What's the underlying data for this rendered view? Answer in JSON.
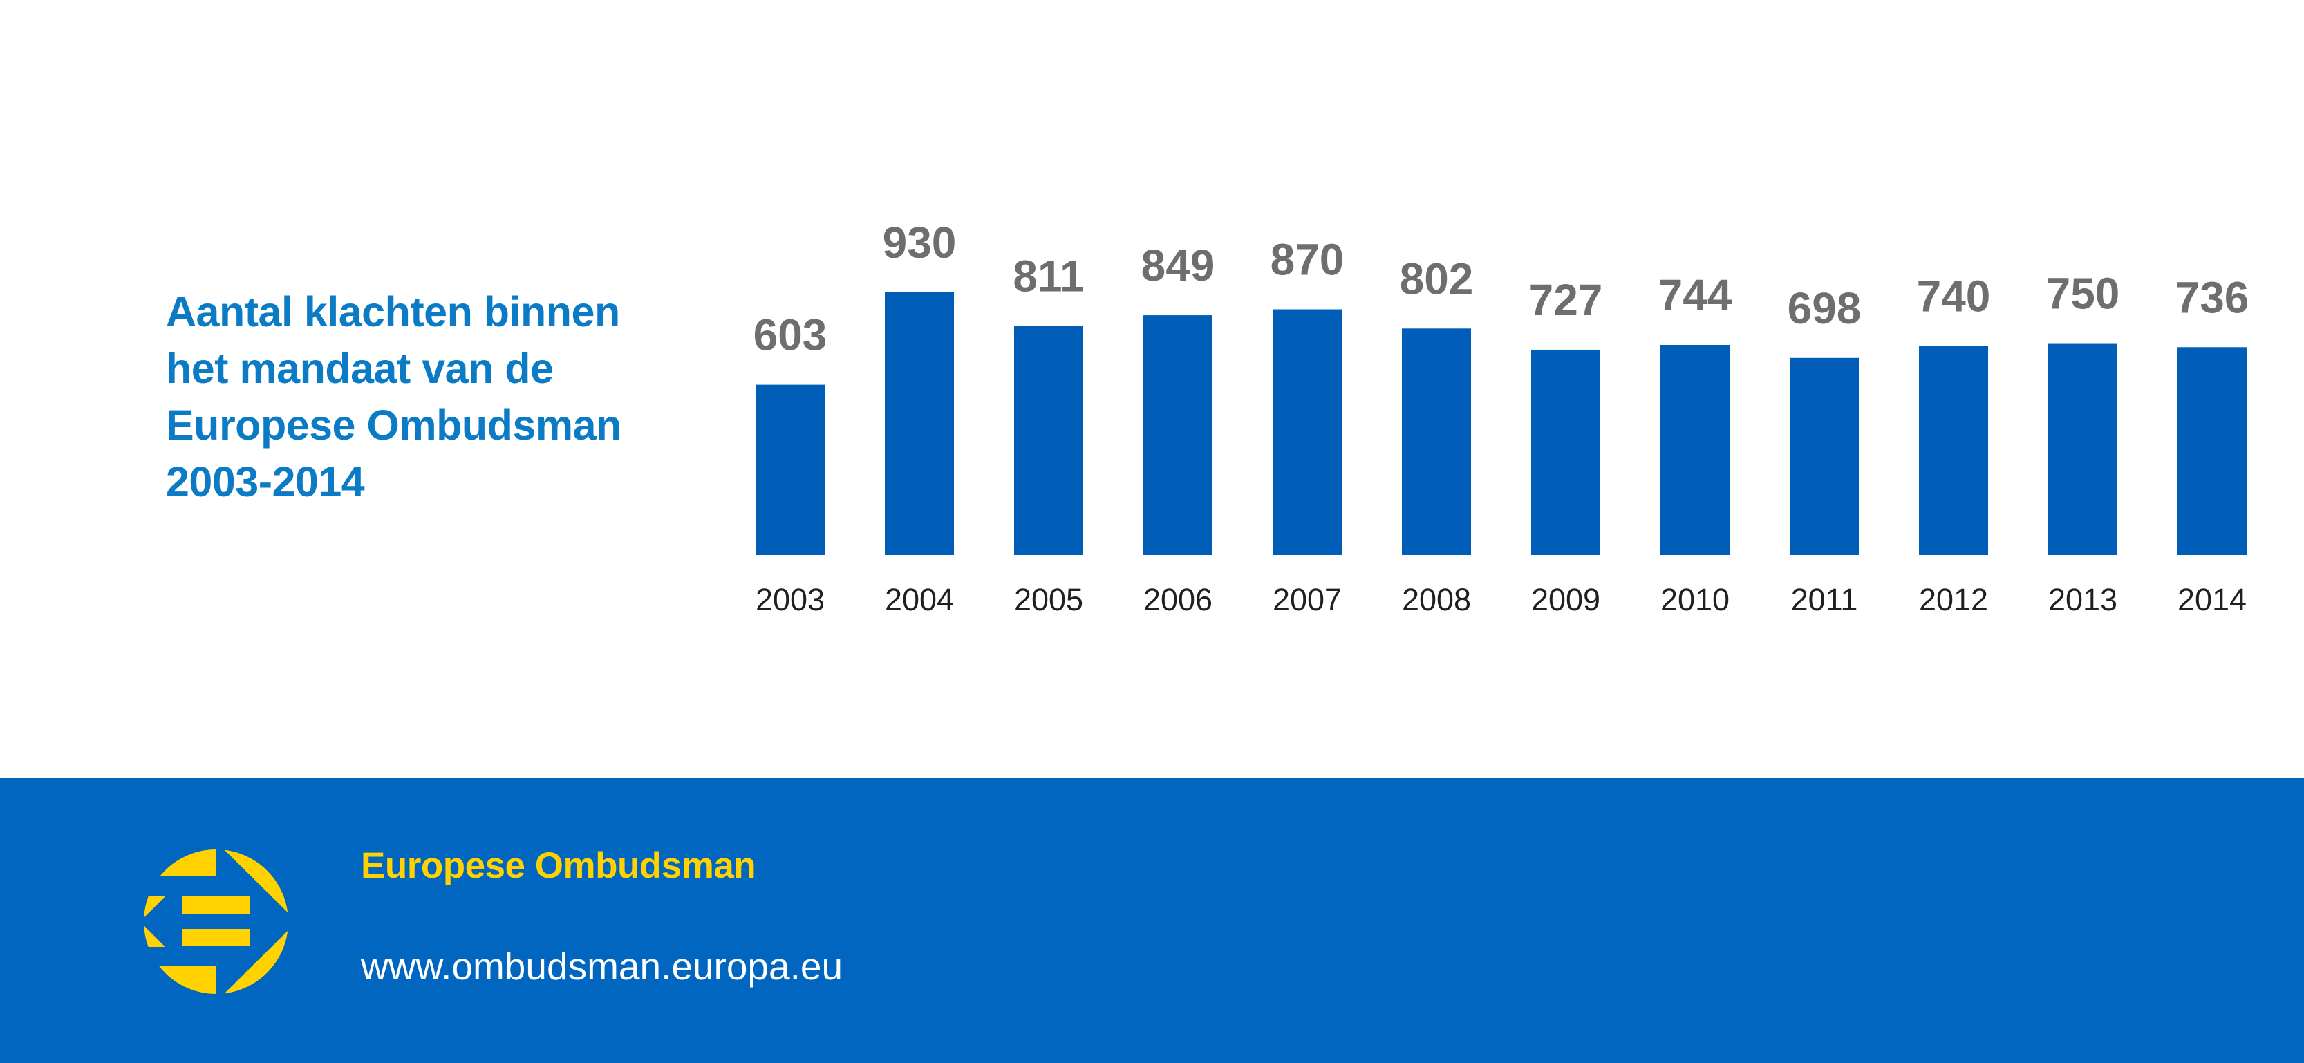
{
  "title_lines": [
    "Aantal klachten binnen",
    "het mandaat van de",
    "Europese Ombudsman",
    "2003-2014"
  ],
  "colors": {
    "bar": "#005eb8",
    "title": "#0a7bc4",
    "value_label": "#6d6e70",
    "year_label": "#231f20",
    "footer": "#0066bf",
    "logo": "#ffd200"
  },
  "chart_data": {
    "type": "bar",
    "title": "Aantal klachten binnen het mandaat van de Europese Ombudsman 2003-2014",
    "xlabel": "",
    "ylabel": "",
    "categories": [
      "2003",
      "2004",
      "2005",
      "2006",
      "2007",
      "2008",
      "2009",
      "2010",
      "2011",
      "2012",
      "2013",
      "2014"
    ],
    "values": [
      603,
      930,
      811,
      849,
      870,
      802,
      727,
      744,
      698,
      740,
      750,
      736
    ],
    "ylim": [
      0,
      930
    ],
    "grid": false,
    "data_labels": true
  },
  "footer": {
    "organization": "Europese Ombudsman",
    "url": "www.ombudsman.europa.eu",
    "logo_icon": "european-ombudsman-logo"
  }
}
